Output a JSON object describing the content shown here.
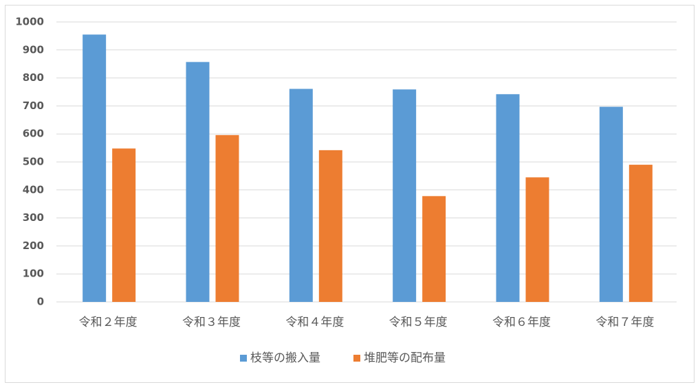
{
  "chart_data": {
    "type": "bar",
    "categories": [
      "令和２年度",
      "令和３年度",
      "令和４年度",
      "令和５年度",
      "令和６年度",
      "令和７年度"
    ],
    "series": [
      {
        "name": "枝等の搬入量",
        "color": "#5b9bd5",
        "values": [
          955,
          857,
          761,
          759,
          742,
          697
        ]
      },
      {
        "name": "堆肥等の配布量",
        "color": "#ed7d31",
        "values": [
          548,
          596,
          542,
          378,
          445,
          490
        ]
      }
    ],
    "ylim": [
      0,
      1000
    ],
    "yticks": [
      0,
      100,
      200,
      300,
      400,
      500,
      600,
      700,
      800,
      900,
      1000
    ],
    "grid": true,
    "legend": "bottom"
  }
}
